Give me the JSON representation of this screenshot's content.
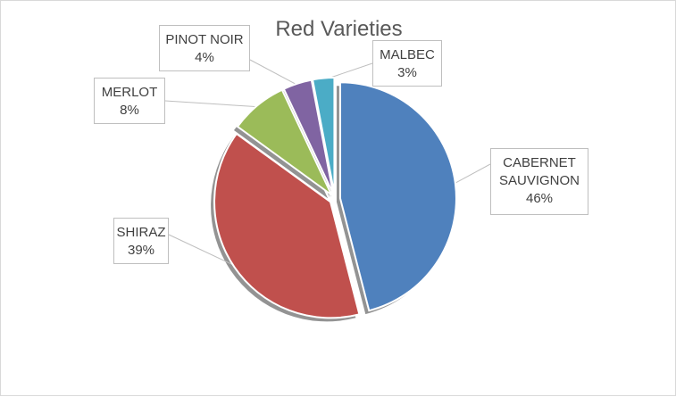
{
  "chart_data": {
    "type": "pie",
    "title": "Red Varieties",
    "exploded": true,
    "slices": [
      {
        "label": "CABERNET SAUVIGNON",
        "label_lines": [
          "CABERNET",
          "SAUVIGNON"
        ],
        "value": 46,
        "value_label": "46%",
        "color": "#4f81bd"
      },
      {
        "label": "SHIRAZ",
        "label_lines": [
          "SHIRAZ"
        ],
        "value": 39,
        "value_label": "39%",
        "color": "#c0504d"
      },
      {
        "label": "MERLOT",
        "label_lines": [
          "MERLOT"
        ],
        "value": 8,
        "value_label": "8%",
        "color": "#9bbb59"
      },
      {
        "label": "PINOT NOIR",
        "label_lines": [
          "PINOT NOIR"
        ],
        "value": 4,
        "value_label": "4%",
        "color": "#8064a2"
      },
      {
        "label": "MALBEC",
        "label_lines": [
          "MALBEC"
        ],
        "value": 3,
        "value_label": "3%",
        "color": "#4bacc6"
      }
    ]
  }
}
